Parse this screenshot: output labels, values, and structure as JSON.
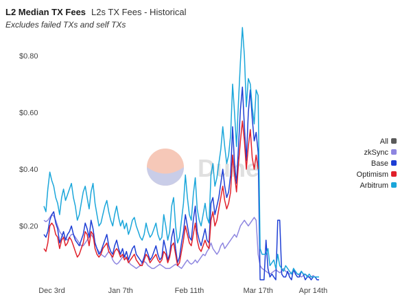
{
  "header": {
    "title": "L2 Median TX Fees",
    "subtitle": "L2s TX Fees - Historical",
    "note": "Excludes failed TXs and self TXs"
  },
  "watermark": {
    "text": "Dune"
  },
  "chart_data": {
    "type": "line",
    "title": "L2 Median TX Fees",
    "subtitle": "L2s TX Fees - Historical",
    "xlabel": "",
    "ylabel": "",
    "ylim": [
      0,
      0.9
    ],
    "y_ticks": [
      0.2,
      0.4,
      0.6,
      0.8
    ],
    "y_tick_labels": [
      "$0.20",
      "$0.40",
      "$0.60",
      "$0.80"
    ],
    "x_tick_labels": [
      "Dec 3rd",
      "Jan 7th",
      "Feb 11th",
      "Mar 17th",
      "Apr 14th"
    ],
    "x_tick_index": [
      4,
      39,
      74,
      109,
      137
    ],
    "n_points": 141,
    "grid": false,
    "legend_position": "right",
    "series": [
      {
        "name": "All",
        "color": "#5a5a5a",
        "values": []
      },
      {
        "name": "zkSync",
        "color": "#8e86e0",
        "values": [
          0.22,
          0.215,
          0.22,
          0.23,
          0.24,
          0.235,
          0.22,
          0.2,
          0.18,
          0.17,
          0.16,
          0.155,
          0.15,
          0.16,
          0.17,
          0.17,
          0.16,
          0.15,
          0.14,
          0.13,
          0.13,
          0.14,
          0.15,
          0.16,
          0.17,
          0.16,
          0.14,
          0.12,
          0.11,
          0.1,
          0.095,
          0.09,
          0.1,
          0.11,
          0.1,
          0.08,
          0.07,
          0.065,
          0.07,
          0.08,
          0.09,
          0.095,
          0.085,
          0.075,
          0.065,
          0.06,
          0.055,
          0.05,
          0.055,
          0.06,
          0.07,
          0.075,
          0.07,
          0.06,
          0.055,
          0.05,
          0.05,
          0.055,
          0.06,
          0.065,
          0.06,
          0.055,
          0.05,
          0.05,
          0.05,
          0.055,
          0.06,
          0.065,
          0.06,
          0.055,
          0.05,
          0.06,
          0.07,
          0.08,
          0.07,
          0.065,
          0.07,
          0.08,
          0.07,
          0.08,
          0.09,
          0.1,
          0.095,
          0.11,
          0.12,
          0.14,
          0.12,
          0.11,
          0.1,
          0.11,
          0.13,
          0.14,
          0.12,
          0.13,
          0.14,
          0.15,
          0.16,
          0.17,
          0.16,
          0.18,
          0.2,
          0.21,
          0.22,
          0.21,
          0.2,
          0.21,
          0.22,
          0.23,
          0.22,
          0.1,
          0.06,
          0.05,
          0.045,
          0.04,
          0.035,
          0.03,
          0.035,
          0.04,
          0.045,
          0.04,
          0.035,
          0.04,
          0.05,
          0.04,
          0.035,
          0.03,
          0.035,
          0.04,
          0.035,
          0.03,
          0.025,
          0.02,
          0.025,
          0.03,
          0.025,
          0.02,
          0.02,
          0.025,
          0.02,
          0.02,
          0.02
        ]
      },
      {
        "name": "Base",
        "color": "#1d3ed4",
        "values": [
          0.17,
          0.16,
          0.18,
          0.22,
          0.24,
          0.25,
          0.21,
          0.19,
          0.14,
          0.16,
          0.18,
          0.15,
          0.17,
          0.18,
          0.2,
          0.17,
          0.15,
          0.14,
          0.13,
          0.15,
          0.17,
          0.21,
          0.19,
          0.16,
          0.22,
          0.19,
          0.14,
          0.12,
          0.1,
          0.11,
          0.13,
          0.15,
          0.17,
          0.13,
          0.11,
          0.1,
          0.13,
          0.15,
          0.12,
          0.1,
          0.12,
          0.09,
          0.11,
          0.08,
          0.1,
          0.12,
          0.13,
          0.1,
          0.09,
          0.08,
          0.07,
          0.09,
          0.12,
          0.1,
          0.08,
          0.09,
          0.11,
          0.13,
          0.1,
          0.08,
          0.09,
          0.15,
          0.12,
          0.08,
          0.1,
          0.16,
          0.19,
          0.12,
          0.07,
          0.09,
          0.14,
          0.18,
          0.24,
          0.2,
          0.16,
          0.15,
          0.22,
          0.27,
          0.18,
          0.15,
          0.13,
          0.16,
          0.19,
          0.15,
          0.14,
          0.28,
          0.3,
          0.24,
          0.27,
          0.3,
          0.35,
          0.4,
          0.34,
          0.3,
          0.32,
          0.38,
          0.55,
          0.42,
          0.35,
          0.48,
          0.61,
          0.69,
          0.55,
          0.43,
          0.6,
          0.68,
          0.58,
          0.5,
          0.53,
          0.46,
          0.01,
          0.01,
          0.01,
          0.15,
          0.05,
          0.02,
          0.03,
          0.02,
          0.01,
          0.22,
          0.22,
          0.03,
          0.02,
          0.02,
          0.04,
          0.02,
          0.01,
          0.05,
          0.03,
          0.02,
          0.02,
          0.04,
          0.03,
          0.01,
          0.02,
          0.02,
          0.01,
          0.02,
          0.02,
          0.01,
          0.01
        ]
      },
      {
        "name": "Optimism",
        "color": "#e0202a",
        "values": [
          0.12,
          0.11,
          0.14,
          0.2,
          0.21,
          0.2,
          0.17,
          0.16,
          0.12,
          0.15,
          0.16,
          0.13,
          0.14,
          0.16,
          0.15,
          0.13,
          0.11,
          0.09,
          0.1,
          0.12,
          0.14,
          0.18,
          0.17,
          0.13,
          0.18,
          0.17,
          0.12,
          0.1,
          0.09,
          0.1,
          0.12,
          0.13,
          0.14,
          0.11,
          0.1,
          0.09,
          0.11,
          0.12,
          0.11,
          0.09,
          0.1,
          0.08,
          0.09,
          0.07,
          0.08,
          0.09,
          0.1,
          0.08,
          0.07,
          0.06,
          0.06,
          0.08,
          0.1,
          0.09,
          0.07,
          0.08,
          0.09,
          0.1,
          0.08,
          0.07,
          0.08,
          0.11,
          0.1,
          0.07,
          0.09,
          0.13,
          0.14,
          0.1,
          0.06,
          0.07,
          0.11,
          0.15,
          0.2,
          0.17,
          0.14,
          0.13,
          0.17,
          0.21,
          0.15,
          0.12,
          0.11,
          0.13,
          0.15,
          0.13,
          0.12,
          0.22,
          0.25,
          0.2,
          0.22,
          0.26,
          0.3,
          0.34,
          0.29,
          0.26,
          0.28,
          0.32,
          0.45,
          0.38,
          0.32,
          0.42,
          0.5,
          0.57,
          0.5,
          0.4,
          0.48,
          0.54,
          0.44,
          0.4,
          0.45,
          0.4
        ]
      },
      {
        "name": "Arbitrum",
        "color": "#1aa6da",
        "values": [
          0.27,
          0.25,
          0.33,
          0.39,
          0.36,
          0.34,
          0.3,
          0.28,
          0.24,
          0.3,
          0.33,
          0.29,
          0.31,
          0.33,
          0.35,
          0.3,
          0.27,
          0.22,
          0.24,
          0.28,
          0.32,
          0.34,
          0.3,
          0.26,
          0.32,
          0.35,
          0.28,
          0.24,
          0.2,
          0.21,
          0.24,
          0.27,
          0.29,
          0.25,
          0.22,
          0.2,
          0.24,
          0.27,
          0.23,
          0.2,
          0.22,
          0.19,
          0.21,
          0.17,
          0.19,
          0.22,
          0.23,
          0.2,
          0.18,
          0.16,
          0.15,
          0.17,
          0.21,
          0.18,
          0.16,
          0.17,
          0.19,
          0.21,
          0.17,
          0.15,
          0.16,
          0.24,
          0.2,
          0.15,
          0.18,
          0.27,
          0.3,
          0.2,
          0.14,
          0.16,
          0.22,
          0.28,
          0.38,
          0.3,
          0.24,
          0.22,
          0.31,
          0.37,
          0.26,
          0.22,
          0.2,
          0.24,
          0.28,
          0.23,
          0.21,
          0.38,
          0.42,
          0.34,
          0.37,
          0.42,
          0.47,
          0.55,
          0.48,
          0.42,
          0.45,
          0.52,
          0.7,
          0.6,
          0.48,
          0.64,
          0.78,
          0.9,
          0.8,
          0.62,
          0.72,
          0.7,
          0.62,
          0.56,
          0.68,
          0.66,
          0.12,
          0.1,
          0.1,
          0.1,
          0.12,
          0.06,
          0.07,
          0.08,
          0.05,
          0.1,
          0.06,
          0.05,
          0.04,
          0.06,
          0.05,
          0.04,
          0.03,
          0.05,
          0.04,
          0.03,
          0.03,
          0.04,
          0.03,
          0.03,
          0.02,
          0.03,
          0.02,
          0.02,
          0.02,
          0.02,
          0.02
        ]
      }
    ]
  }
}
